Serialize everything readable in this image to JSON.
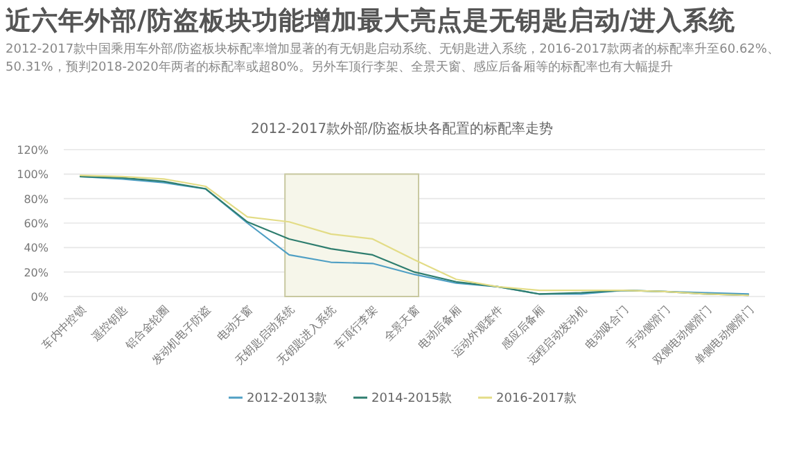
{
  "chart_data": {
    "type": "line",
    "title": "近六年外部/防盗板块功能增加最大亮点是无钥匙启动/进入系统",
    "subtitle": "2012-2017款中国乘用车外部/防盗板块标配率增加显著的有无钥匙启动系统、无钥匙进入系统，2016-2017款两者的标配率升至60.62%、50.31%，预判2018-2020年两者的标配率或超80%。另外车顶行李架、全景天窗、感应后备厢等的标配率也有大幅提升",
    "annotations": [
      "2012-2017款外部/防盗板块各配置的标配率走势"
    ],
    "categories": [
      "车内中控锁",
      "遥控钥匙",
      "铝合金轮圈",
      "发动机电子防盗",
      "电动天窗",
      "无钥匙启动系统",
      "无钥匙进入系统",
      "车顶行李架",
      "全景天窗",
      "电动后备厢",
      "运动外观套件",
      "感应后备厢",
      "远程启动发动机",
      "电动吸合门",
      "手动侧滑门",
      "双侧电动侧滑门",
      "单侧电动侧滑门"
    ],
    "series": [
      {
        "name": "2012-2013款",
        "color": "#4f9fc4",
        "values": [
          98,
          96,
          93,
          88,
          60,
          34,
          28,
          27,
          18,
          11,
          8,
          2,
          2,
          5,
          4,
          3,
          2
        ]
      },
      {
        "name": "2014-2015款",
        "color": "#2e7d6e",
        "values": [
          98,
          97,
          94,
          88,
          61,
          47,
          39,
          34,
          20,
          12,
          8,
          2,
          3,
          5,
          4,
          2,
          1
        ]
      },
      {
        "name": "2016-2017款",
        "color": "#e3dc86",
        "values": [
          99,
          98,
          96,
          90,
          65,
          61,
          51,
          47,
          30,
          14,
          8,
          5,
          5,
          5,
          4,
          2,
          1
        ]
      }
    ],
    "ylim": [
      0,
      120
    ],
    "yticks": [
      {
        "value": 0,
        "label": "0%"
      },
      {
        "value": 20,
        "label": "20%"
      },
      {
        "value": 40,
        "label": "40%"
      },
      {
        "value": 60,
        "label": "60%"
      },
      {
        "value": 80,
        "label": "80%"
      },
      {
        "value": 100,
        "label": "100%"
      },
      {
        "value": 120,
        "label": "120%"
      }
    ],
    "bands": [
      {
        "axis": "x",
        "from": "无钥匙启动系统",
        "to": "全景天窗",
        "color": "#c8c8a0"
      }
    ],
    "grid": "y",
    "legend": "bottom",
    "line_style": "solid"
  }
}
